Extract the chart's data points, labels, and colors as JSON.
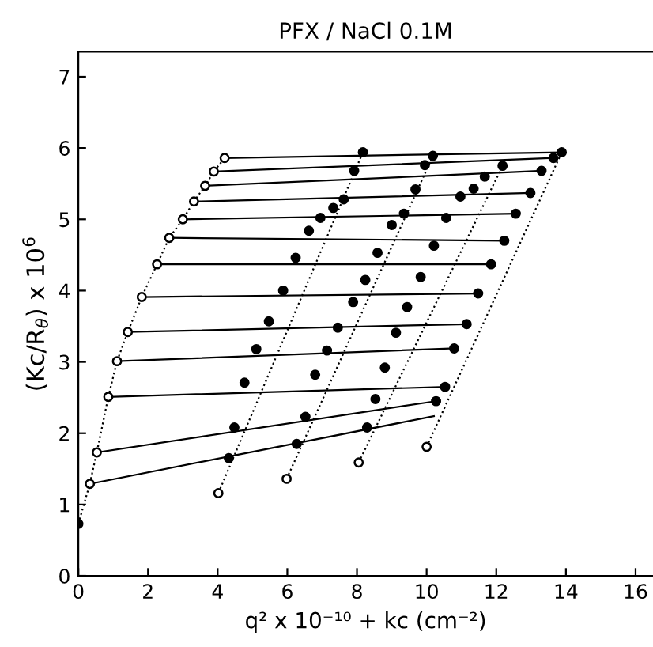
{
  "chart_data": {
    "type": "scatter",
    "title": "PFX / NaCl 0.1M",
    "xlabel": "q² x 10⁻¹⁰ + kc (cm⁻²)",
    "ylabel": "(Kc/R$_{θ}$) x 10$^{6}$",
    "xlim": [
      0,
      16.5
    ],
    "ylim": [
      0,
      7.35
    ],
    "xticks": [
      0,
      2,
      4,
      6,
      8,
      10,
      12,
      14,
      16
    ],
    "yticks": [
      0,
      1,
      2,
      3,
      4,
      5,
      6,
      7
    ],
    "grid": false,
    "legend": false,
    "series": [
      {
        "type": "line",
        "line_style": "solid",
        "color": "#000000",
        "x": [
          0.33,
          10.21
        ],
        "values": [
          1.29,
          2.24
        ]
      },
      {
        "type": "line",
        "line_style": "solid",
        "color": "#000000",
        "x": [
          0.53,
          10.27
        ],
        "values": [
          1.73,
          2.45
        ]
      },
      {
        "type": "line",
        "line_style": "solid",
        "color": "#000000",
        "x": [
          0.86,
          10.53
        ],
        "values": [
          2.51,
          2.65
        ]
      },
      {
        "type": "line",
        "line_style": "solid",
        "color": "#000000",
        "x": [
          1.11,
          10.79
        ],
        "values": [
          3.01,
          3.19
        ]
      },
      {
        "type": "line",
        "line_style": "solid",
        "color": "#000000",
        "x": [
          1.42,
          11.15
        ],
        "values": [
          3.42,
          3.53
        ]
      },
      {
        "type": "line",
        "line_style": "solid",
        "color": "#000000",
        "x": [
          1.82,
          11.48
        ],
        "values": [
          3.91,
          3.96
        ]
      },
      {
        "type": "line",
        "line_style": "solid",
        "color": "#000000",
        "x": [
          2.26,
          11.85
        ],
        "values": [
          4.37,
          4.37
        ]
      },
      {
        "type": "line",
        "line_style": "solid",
        "color": "#000000",
        "x": [
          2.61,
          12.23
        ],
        "values": [
          4.74,
          4.7
        ]
      },
      {
        "type": "line",
        "line_style": "solid",
        "color": "#000000",
        "x": [
          3.0,
          12.56
        ],
        "values": [
          5.0,
          5.08
        ]
      },
      {
        "type": "line",
        "line_style": "solid",
        "color": "#000000",
        "x": [
          3.32,
          12.98
        ],
        "values": [
          5.25,
          5.37
        ]
      },
      {
        "type": "line",
        "line_style": "solid",
        "color": "#000000",
        "x": [
          3.64,
          13.3
        ],
        "values": [
          5.47,
          5.68
        ]
      },
      {
        "type": "line",
        "line_style": "solid",
        "color": "#000000",
        "x": [
          3.89,
          13.64
        ],
        "values": [
          5.67,
          5.86
        ]
      },
      {
        "type": "line",
        "line_style": "solid",
        "color": "#000000",
        "x": [
          4.2,
          13.88
        ],
        "values": [
          5.86,
          5.94
        ]
      },
      {
        "type": "line",
        "line_style": "dotted",
        "color": "#000000",
        "x": [
          4.02,
          8.17
        ],
        "values": [
          1.16,
          5.94
        ]
      },
      {
        "type": "line",
        "line_style": "dotted",
        "color": "#000000",
        "x": [
          5.98,
          10.18
        ],
        "values": [
          1.36,
          5.89
        ]
      },
      {
        "type": "line",
        "line_style": "dotted",
        "color": "#000000",
        "x": [
          8.05,
          12.18
        ],
        "values": [
          1.59,
          5.75
        ]
      },
      {
        "type": "line",
        "line_style": "dotted",
        "color": "#000000",
        "x": [
          10.0,
          13.88
        ],
        "values": [
          1.81,
          5.94
        ]
      },
      {
        "type": "line",
        "line_style": "dotted",
        "color": "#000000",
        "x": [
          0,
          0.33,
          0.53,
          0.86,
          1.11,
          1.42,
          1.82,
          2.26,
          2.61,
          3.0,
          3.32,
          3.64,
          3.89,
          4.2
        ],
        "values": [
          0.73,
          1.29,
          1.73,
          2.51,
          3.01,
          3.42,
          3.91,
          4.37,
          4.74,
          5.0,
          5.25,
          5.47,
          5.67,
          5.86
        ]
      },
      {
        "marker": "circle",
        "color": "#ffffff",
        "x": [
          0.33,
          0.53,
          0.86,
          1.11,
          1.42,
          1.82,
          2.26,
          2.61,
          3.0,
          3.32,
          3.64,
          3.89,
          4.2,
          4.02,
          5.98,
          8.05,
          10.0
        ],
        "values": [
          1.29,
          1.73,
          2.51,
          3.01,
          3.42,
          3.91,
          4.37,
          4.74,
          5.0,
          5.25,
          5.47,
          5.67,
          5.86,
          1.16,
          1.36,
          1.59,
          1.81
        ]
      },
      {
        "marker": "circle",
        "color": "#000000",
        "x": [
          0,
          4.32,
          4.48,
          4.77,
          5.11,
          5.47,
          5.88,
          6.24,
          6.62,
          6.95,
          7.32,
          7.62,
          7.92,
          8.17,
          6.27,
          6.52,
          6.8,
          7.14,
          7.45,
          7.89,
          8.24,
          8.59,
          9.0,
          9.35,
          9.68,
          9.95,
          10.18,
          8.29,
          8.53,
          8.8,
          9.12,
          9.44,
          9.83,
          10.21,
          10.56,
          10.97,
          11.35,
          11.67,
          12.18,
          10.27,
          10.53,
          10.79,
          11.15,
          11.48,
          11.85,
          12.23,
          12.56,
          12.98,
          13.3,
          13.64,
          13.88
        ],
        "values": [
          0.73,
          1.65,
          2.08,
          2.71,
          3.18,
          3.57,
          4.0,
          4.46,
          4.84,
          5.02,
          5.16,
          5.28,
          5.68,
          5.94,
          1.85,
          2.23,
          2.82,
          3.16,
          3.48,
          3.84,
          4.15,
          4.53,
          4.92,
          5.08,
          5.42,
          5.76,
          5.89,
          2.08,
          2.48,
          2.92,
          3.41,
          3.77,
          4.19,
          4.63,
          5.02,
          5.32,
          5.43,
          5.6,
          5.75,
          2.45,
          2.65,
          3.19,
          3.53,
          3.96,
          4.37,
          4.7,
          5.08,
          5.37,
          5.68,
          5.86,
          5.94
        ]
      }
    ]
  }
}
